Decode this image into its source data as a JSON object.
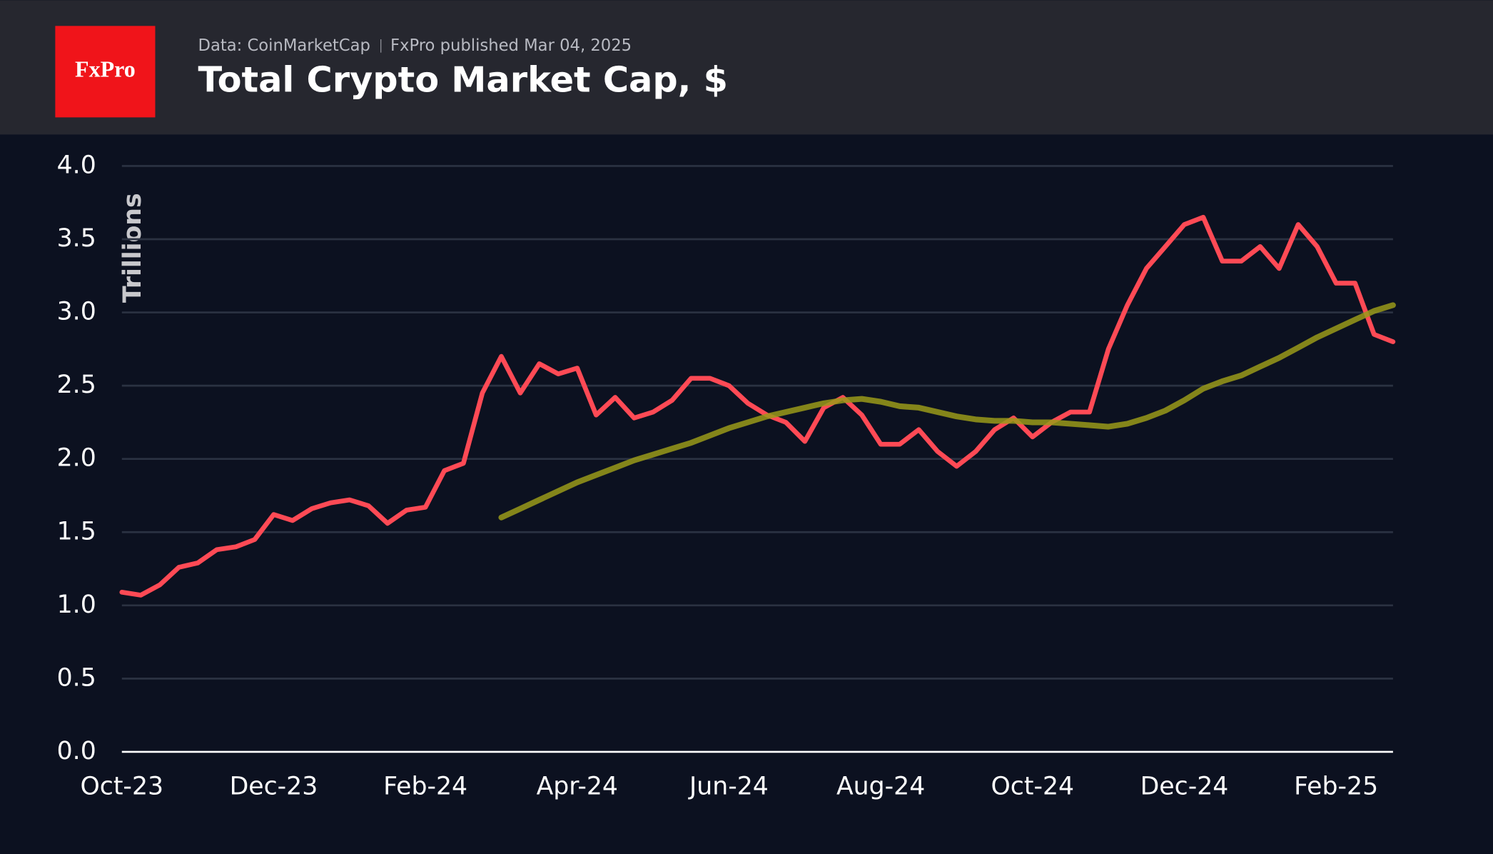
{
  "header": {
    "logo": "FxPro",
    "source": "Data: CoinMarketCap",
    "published": "FxPro published Mar 04, 2025"
  },
  "chart_data": {
    "type": "line",
    "title": "Total Crypto Market Cap, $",
    "y_label": "Trillions",
    "categories": [
      "Oct-23",
      null,
      null,
      null,
      null,
      null,
      null,
      null,
      "Dec-23",
      null,
      null,
      null,
      null,
      null,
      null,
      null,
      "Feb-24",
      null,
      null,
      null,
      null,
      null,
      null,
      null,
      "Apr-24",
      null,
      null,
      null,
      null,
      null,
      null,
      null,
      "Jun-24",
      null,
      null,
      null,
      null,
      null,
      null,
      null,
      "Aug-24",
      null,
      null,
      null,
      null,
      null,
      null,
      null,
      "Oct-24",
      null,
      null,
      null,
      null,
      null,
      null,
      null,
      "Dec-24",
      null,
      null,
      null,
      null,
      null,
      null,
      null,
      "Feb-25",
      null,
      null,
      null
    ],
    "series": [
      {
        "color": "#ff4a55",
        "values": [
          1.09,
          1.07,
          1.14,
          1.26,
          1.29,
          1.38,
          1.4,
          1.45,
          1.62,
          1.58,
          1.66,
          1.7,
          1.72,
          1.68,
          1.56,
          1.65,
          1.67,
          1.92,
          1.97,
          2.45,
          2.7,
          2.45,
          2.65,
          2.58,
          2.62,
          2.3,
          2.42,
          2.28,
          2.32,
          2.4,
          2.55,
          2.55,
          2.5,
          2.38,
          2.3,
          2.25,
          2.12,
          2.35,
          2.42,
          2.3,
          2.1,
          2.1,
          2.2,
          2.05,
          1.95,
          2.05,
          2.2,
          2.28,
          2.15,
          2.25,
          2.32,
          2.32,
          2.75,
          3.05,
          3.3,
          3.45,
          3.6,
          3.65,
          3.35,
          3.35,
          3.45,
          3.3,
          3.6,
          3.45,
          3.2,
          3.2,
          2.85,
          2.8
        ]
      },
      {
        "color": "#9a9a1a",
        "values": [
          null,
          null,
          null,
          null,
          null,
          null,
          null,
          null,
          null,
          null,
          null,
          null,
          null,
          null,
          null,
          null,
          null,
          null,
          null,
          null,
          1.6,
          1.66,
          1.72,
          1.78,
          1.84,
          1.89,
          1.94,
          1.99,
          2.03,
          2.07,
          2.11,
          2.16,
          2.21,
          2.25,
          2.29,
          2.32,
          2.35,
          2.38,
          2.4,
          2.41,
          2.39,
          2.36,
          2.35,
          2.32,
          2.29,
          2.27,
          2.26,
          2.26,
          2.25,
          2.25,
          2.24,
          2.23,
          2.22,
          2.24,
          2.28,
          2.33,
          2.4,
          2.48,
          2.53,
          2.57,
          2.63,
          2.69,
          2.76,
          2.83,
          2.89,
          2.95,
          3.01,
          3.05
        ]
      }
    ],
    "ylim": [
      0,
      4
    ],
    "yticks": [
      {
        "value": 0,
        "label": "0.0"
      },
      0.5,
      {
        "value": 1,
        "label": "1.0"
      },
      1.5,
      {
        "value": 2,
        "label": "2.0"
      },
      2.5,
      {
        "value": 3,
        "label": "3.0"
      },
      3.5,
      {
        "value": 4,
        "label": "4.0"
      }
    ],
    "grid": true
  }
}
